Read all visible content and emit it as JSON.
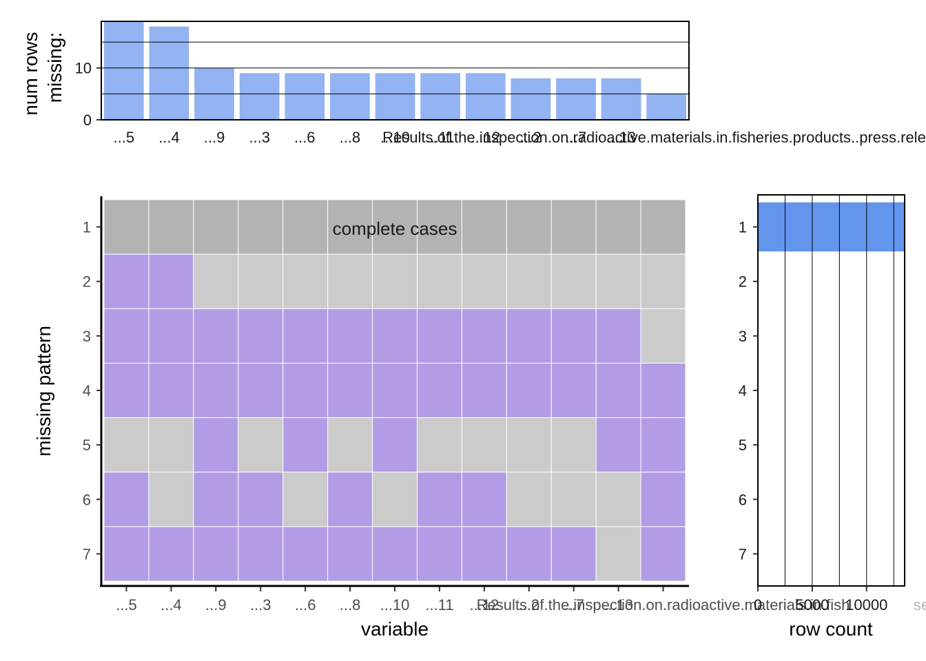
{
  "colors": {
    "bar": "#93b3f2",
    "missing": "#b39ce6",
    "present": "#cbcbcb",
    "complete": "#b3b3b3",
    "row_bar": "#6495ed",
    "grid": "#000000"
  },
  "chart_data": [
    {
      "type": "bar",
      "panel": "top",
      "categories": [
        "...5",
        "...4",
        "...9",
        "...3",
        "...6",
        "...8",
        "...10",
        "...11",
        "...12",
        "...2",
        "...7",
        "...13",
        "Results.of.the.inspection.on.radioactive.materials.in.fisheries.products..press.release"
      ],
      "tick_labels": [
        "...5",
        "...4",
        "...9",
        "...3",
        "...6",
        "...8",
        "...10",
        "...11",
        "...12",
        "...2",
        "...7",
        "...13",
        "Results.of.the.inspection.on.radioactive.materials.in.fisheries.products..press.release"
      ],
      "values": [
        19,
        18,
        10,
        9,
        9,
        9,
        9,
        9,
        9,
        8,
        8,
        8,
        5
      ],
      "ylabel": "num rows missing:",
      "ylabel_lines": [
        "num rows",
        "missing:"
      ],
      "ylim": [
        0,
        19
      ],
      "yticks": [
        0,
        10
      ],
      "gridlines": [
        5,
        10,
        15
      ]
    },
    {
      "type": "heatmap",
      "panel": "main",
      "x_tick_labels": [
        "...5",
        "...4",
        "...9",
        "...3",
        "...6",
        "...8",
        "...10",
        "...11",
        "...12",
        "...2",
        "...7",
        "...13",
        "Results.of.the.inspection.on.radioactive.materials.in.fish"
      ],
      "patterns": [
        "1",
        "2",
        "3",
        "4",
        "5",
        "6",
        "7"
      ],
      "missing": [
        [
          0,
          0,
          0,
          0,
          0,
          0,
          0,
          0,
          0,
          0,
          0,
          0,
          0
        ],
        [
          1,
          1,
          0,
          0,
          0,
          0,
          0,
          0,
          0,
          0,
          0,
          0,
          0
        ],
        [
          1,
          1,
          1,
          1,
          1,
          1,
          1,
          1,
          1,
          1,
          1,
          1,
          0
        ],
        [
          1,
          1,
          1,
          1,
          1,
          1,
          1,
          1,
          1,
          1,
          1,
          1,
          1
        ],
        [
          0,
          0,
          1,
          0,
          1,
          0,
          1,
          0,
          0,
          0,
          0,
          1,
          1
        ],
        [
          1,
          0,
          1,
          1,
          0,
          1,
          0,
          1,
          1,
          0,
          0,
          0,
          1
        ],
        [
          1,
          1,
          1,
          1,
          1,
          1,
          1,
          1,
          1,
          1,
          1,
          0,
          1
        ]
      ],
      "complete_label": "complete cases",
      "xlabel": "variable",
      "ylabel": "missing pattern"
    },
    {
      "type": "bar",
      "panel": "right",
      "orientation": "horizontal",
      "categories": [
        "1",
        "2",
        "3",
        "4",
        "5",
        "6",
        "7"
      ],
      "values": [
        13500,
        0,
        0,
        0,
        0,
        0,
        0
      ],
      "xlim": [
        0,
        13500
      ],
      "xticks": [
        0,
        5000,
        10000
      ],
      "gridlines": [
        2500,
        5000,
        7500,
        10000,
        12500
      ],
      "xlabel": "row count",
      "clipped_tick_label": "se"
    }
  ]
}
